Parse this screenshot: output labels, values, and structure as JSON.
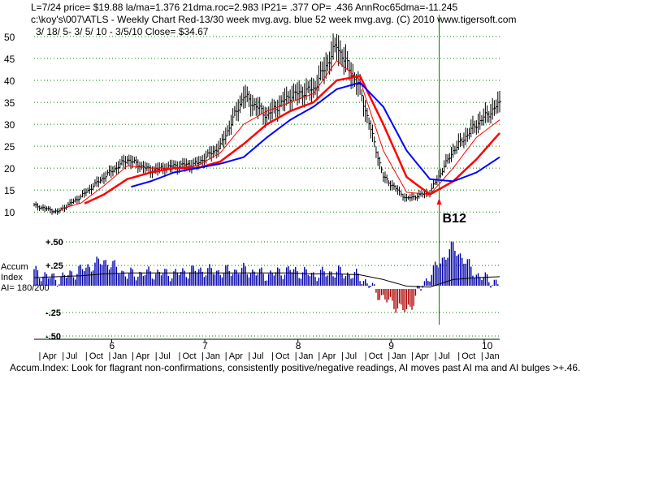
{
  "header": {
    "line1": "L=7/24  price= $19.88  la/ma=1.376 21dma.roc=2.983 IP21= .377 OP= .436 AnnRoc65dma=-11.245",
    "line2": "c:\\koy's\\007\\ATLS  - Weekly Chart  Red-13/30 week mvg.avg.  blue 52 week mvg.avg.  (C) 2010 www.tigersoft.com",
    "line3": "3/ 18/ 5- 3/ 5/ 10 - 3/5/10   Close= $34.67"
  },
  "footer": "Accum.Index: Look for flagrant non-confirmations, consistently positive/negative readings, AI moves past AI ma and AI bulges >+.46.",
  "colors": {
    "price_bars": "#000000",
    "ma13": "#ff0000",
    "ma30": "#ff0000",
    "ma52": "#0000ff",
    "accum_positive": "#0000aa",
    "accum_negative": "#aa0000",
    "grid": "#008000",
    "signal_line": "#008000"
  },
  "chart_data": [
    {
      "type": "line",
      "name": "price-panel",
      "ylim": [
        8,
        50
      ],
      "y_ticks": [
        10,
        15,
        20,
        25,
        30,
        35,
        40,
        45,
        50
      ],
      "x_year_labels": [
        "6",
        "7",
        "8",
        "9",
        "10"
      ],
      "x_month_labels": [
        "Apr",
        "Jul",
        "Oct",
        "Jan",
        "Apr",
        "Jul",
        "Oct",
        "Jan",
        "Apr",
        "Jul",
        "Oct",
        "Jan",
        "Apr",
        "Jul",
        "Oct",
        "Jan",
        "Apr",
        "Jul",
        "Oct",
        "Jan"
      ],
      "x": [
        "2005-03",
        "2005-06",
        "2005-09",
        "2005-12",
        "2006-03",
        "2006-06",
        "2006-09",
        "2006-12",
        "2007-03",
        "2007-06",
        "2007-09",
        "2007-12",
        "2008-03",
        "2008-06",
        "2008-09",
        "2008-12",
        "2009-03",
        "2009-06",
        "2009-09",
        "2009-12",
        "2010-03"
      ],
      "series": [
        {
          "name": "price",
          "values": [
            11.5,
            10.0,
            13.5,
            18.0,
            22.0,
            19.5,
            20.5,
            21.0,
            25.0,
            36.5,
            32.0,
            36.5,
            38.0,
            48.0,
            38.0,
            18.0,
            13.0,
            14.5,
            24.0,
            30.0,
            34.7
          ]
        },
        {
          "name": "13-week",
          "values": [
            null,
            10.5,
            12.0,
            16.0,
            20.5,
            20.0,
            20.0,
            20.5,
            23.5,
            30.0,
            33.0,
            35.0,
            37.0,
            44.5,
            40.0,
            24.0,
            14.5,
            14.0,
            20.0,
            27.0,
            31.0
          ]
        },
        {
          "name": "30-week",
          "values": [
            null,
            null,
            11.5,
            14.0,
            17.5,
            19.0,
            20.0,
            20.0,
            21.5,
            25.5,
            30.0,
            33.0,
            35.0,
            40.0,
            41.0,
            30.0,
            18.0,
            14.0,
            17.0,
            22.0,
            28.0
          ]
        },
        {
          "name": "52-week",
          "values": [
            null,
            null,
            null,
            null,
            15.5,
            17.0,
            19.0,
            20.0,
            21.0,
            22.5,
            27.0,
            31.0,
            34.0,
            38.0,
            39.5,
            34.0,
            24.0,
            17.5,
            17.0,
            19.0,
            22.5
          ]
        }
      ],
      "annotations": [
        {
          "text": "B12",
          "x": "2009-07"
        }
      ]
    },
    {
      "type": "bar",
      "name": "accumulation-index",
      "title": "Accum Index",
      "value_label": "AI= 180/200",
      "ylim": [
        -0.5,
        0.5
      ],
      "y_tick_labels": [
        "+.50",
        "+.25",
        "-.25",
        "-.50"
      ],
      "x": [
        "2005-03",
        "2005-06",
        "2005-09",
        "2005-12",
        "2006-03",
        "2006-06",
        "2006-09",
        "2006-12",
        "2007-03",
        "2007-06",
        "2007-09",
        "2007-12",
        "2008-03",
        "2008-06",
        "2008-09",
        "2008-12",
        "2009-03",
        "2009-06",
        "2009-09",
        "2009-12",
        "2010-03"
      ],
      "series": [
        {
          "name": "AI",
          "values": [
            0.18,
            0.1,
            0.2,
            0.3,
            0.15,
            0.17,
            0.16,
            0.2,
            0.18,
            0.2,
            0.15,
            0.2,
            0.15,
            0.18,
            0.13,
            -0.1,
            -0.24,
            0.15,
            0.45,
            0.15,
            0.05
          ]
        },
        {
          "name": "AI ma",
          "values": [
            0.12,
            0.13,
            0.14,
            0.16,
            0.17,
            0.17,
            0.17,
            0.17,
            0.17,
            0.17,
            0.17,
            0.17,
            0.16,
            0.16,
            0.15,
            0.1,
            0.03,
            0.02,
            0.1,
            0.12,
            0.13
          ]
        }
      ]
    }
  ]
}
